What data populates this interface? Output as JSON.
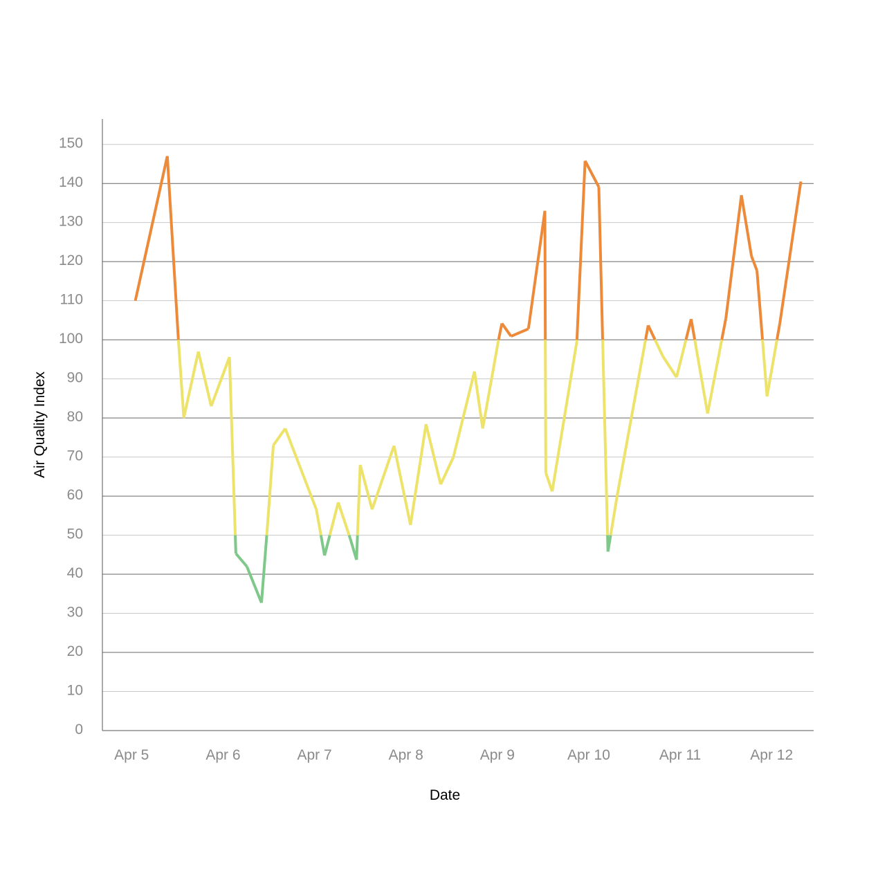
{
  "chart_data": {
    "type": "line",
    "x_label": "Date",
    "y_label": "Air Quality Index",
    "x": [
      0.04,
      0.39,
      0.51,
      0.57,
      0.73,
      0.87,
      1.07,
      1.14,
      1.26,
      1.42,
      1.48,
      1.55,
      1.68,
      2.02,
      2.11,
      2.26,
      2.39,
      2.46,
      2.5,
      2.63,
      2.87,
      3.05,
      3.22,
      3.38,
      3.52,
      3.75,
      3.84,
      4.01,
      4.05,
      4.15,
      4.34,
      4.52,
      4.53,
      4.6,
      4.87,
      4.96,
      5.11,
      5.21,
      5.31,
      5.65,
      5.81,
      5.96,
      6.12,
      6.3,
      6.5,
      6.67,
      6.78,
      6.84,
      6.95,
      7.09,
      7.32
    ],
    "series": [
      {
        "name": "AQI",
        "values": [
          110,
          147,
          100.5,
          80,
          97,
          83,
          95.6,
          45.3,
          42,
          32.7,
          50.6,
          73,
          77.3,
          56.6,
          44.8,
          58.4,
          49.2,
          43.7,
          68,
          56.6,
          72.9,
          52.6,
          78.4,
          63,
          70,
          91.9,
          77.3,
          99.6,
          104.2,
          100.9,
          102.8,
          133,
          66,
          61.2,
          99.6,
          145.8,
          139.1,
          45.8,
          60,
          103.7,
          95.8,
          90.4,
          105.3,
          81.1,
          105.5,
          137,
          121.4,
          117.7,
          85.5,
          104.2,
          140.5
        ]
      }
    ],
    "color_bands": [
      {
        "below": 50,
        "color": "#7ec98a"
      },
      {
        "below": 100,
        "color": "#ede36a"
      },
      {
        "below": 1000,
        "color": "#ec8a3a"
      }
    ],
    "xlim": [
      -0.32,
      7.46
    ],
    "xticks": [
      {
        "value": 0,
        "label": "Apr 5"
      },
      {
        "value": 1,
        "label": "Apr 6"
      },
      {
        "value": 2,
        "label": "Apr 7"
      },
      {
        "value": 3,
        "label": "Apr 8"
      },
      {
        "value": 4,
        "label": "Apr 9"
      },
      {
        "value": 5,
        "label": "Apr 10"
      },
      {
        "value": 6,
        "label": "Apr 11"
      },
      {
        "value": 7,
        "label": "Apr 12"
      }
    ],
    "ylim": [
      0,
      156.5
    ],
    "yticks": [
      0,
      10,
      20,
      30,
      40,
      50,
      60,
      70,
      80,
      90,
      100,
      110,
      120,
      130,
      140,
      150
    ],
    "grid": true
  }
}
